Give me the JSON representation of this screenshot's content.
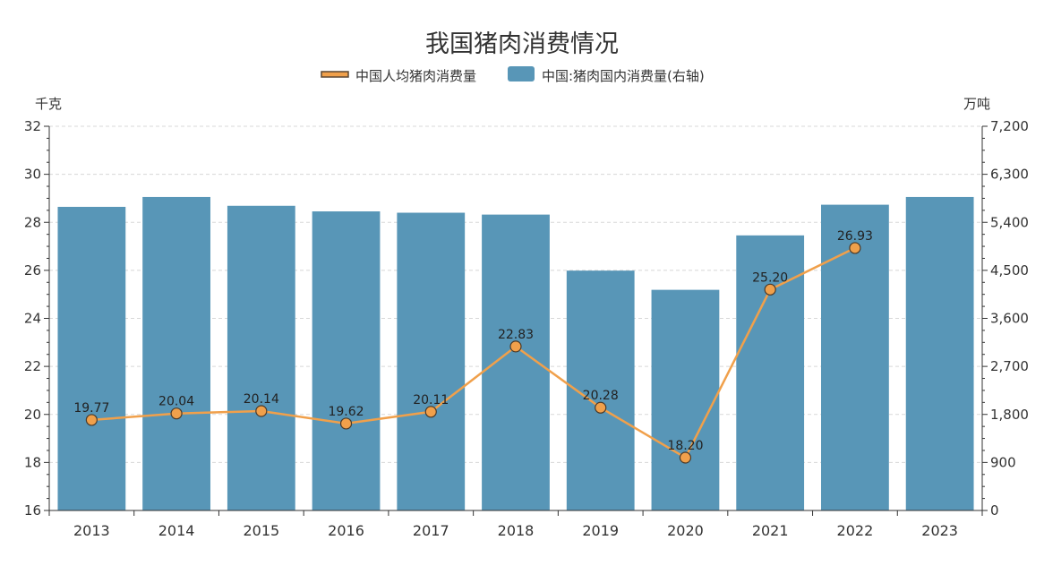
{
  "chart_data": {
    "type": "bar",
    "title": "我国猪肉消费情况",
    "categories": [
      "2013",
      "2014",
      "2015",
      "2016",
      "2017",
      "2018",
      "2019",
      "2020",
      "2021",
      "2022",
      "2023"
    ],
    "series": [
      {
        "name": "中国人均猪肉消费量",
        "type": "line",
        "axis": "left",
        "color": "#F0A04B",
        "marker_color": "#F0A04B",
        "values": [
          19.77,
          20.04,
          20.14,
          19.62,
          20.11,
          22.83,
          20.28,
          18.2,
          25.2,
          26.93,
          null
        ],
        "labels": [
          "19.77",
          "20.04",
          "20.14",
          "19.62",
          "20.11",
          "22.83",
          "20.28",
          "18.20",
          "25.20",
          "26.93",
          ""
        ]
      },
      {
        "name": "中国:猪肉国内消费量(右轴)",
        "type": "bar",
        "axis": "right",
        "color": "#5896B7",
        "values": [
          5690,
          5875,
          5710,
          5605,
          5580,
          5545,
          4495,
          4135,
          5155,
          5730,
          5875
        ]
      }
    ],
    "y_left": {
      "unit": "千克",
      "ylim": [
        16,
        32
      ],
      "ticks": [
        "16",
        "18",
        "20",
        "22",
        "24",
        "26",
        "28",
        "30",
        "32"
      ]
    },
    "y_right": {
      "unit": "万吨",
      "ylim": [
        0,
        7200
      ],
      "ticks": [
        "0",
        "900",
        "1,800",
        "2,700",
        "3,600",
        "4,500",
        "5,400",
        "6,300",
        "7,200"
      ]
    },
    "grid": true,
    "legend_position": "top-center"
  }
}
